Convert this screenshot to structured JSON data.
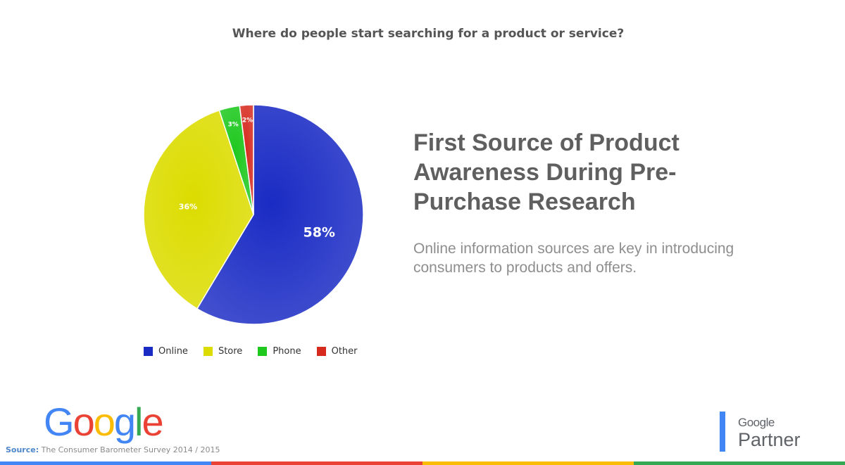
{
  "question": "Where do people start searching for a product or service?",
  "headline": "First Source of Product Awareness During Pre-Purchase Research",
  "subtext": "Online information sources are key in introducing consumers to products and offers.",
  "source": {
    "label": "Source:",
    "text": "The Consumer Barometer Survey 2014 / 2015"
  },
  "logo": {
    "letters": [
      "G",
      "o",
      "o",
      "g",
      "l",
      "e"
    ],
    "colors": [
      "#4285f4",
      "#ea4335",
      "#fbbc05",
      "#4285f4",
      "#34a853",
      "#ea4335"
    ]
  },
  "partner_badge": {
    "google": "Google",
    "partner": "Partner"
  },
  "footer_colors": [
    "#4285f4",
    "#ea4335",
    "#fbbc05",
    "#34a853"
  ],
  "chart_data": {
    "type": "pie",
    "title": "",
    "categories": [
      "Online",
      "Store",
      "Phone",
      "Other"
    ],
    "values": [
      58,
      36,
      3,
      2
    ],
    "labels": [
      "58%",
      "36%",
      "3%",
      "2%"
    ],
    "colors": [
      "#1a2bc4",
      "#dcdc00",
      "#1ec81e",
      "#d62a1e"
    ],
    "legend_position": "bottom"
  }
}
